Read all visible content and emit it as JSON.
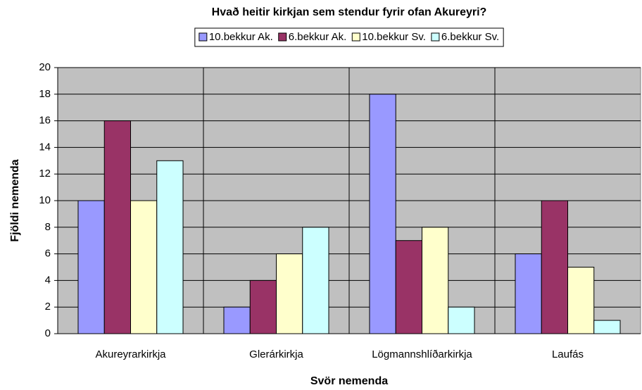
{
  "chart_data": {
    "type": "bar",
    "title": "Hvað heitir kirkjan sem stendur fyrir ofan Akureyri?",
    "x_label": "Svör nemenda",
    "y_label": "Fjöldi nemenda",
    "categories": [
      "Akureyrarkirkja",
      "Glerárkirkja",
      "Lögmannshlíðarkirkja",
      "Laufás"
    ],
    "series": [
      {
        "name": "10.bekkur Ak.",
        "color": "#9999ff",
        "values": [
          10,
          2,
          18,
          6
        ]
      },
      {
        "name": "6.bekkur Ak.",
        "color": "#993366",
        "values": [
          16,
          4,
          7,
          10
        ]
      },
      {
        "name": "10.bekkur Sv.",
        "color": "#ffffcc",
        "values": [
          10,
          6,
          8,
          5
        ]
      },
      {
        "name": "6.bekkur Sv.",
        "color": "#ccffff",
        "values": [
          13,
          8,
          2,
          1
        ]
      }
    ],
    "ylim": [
      0,
      20
    ],
    "yticks": [
      0,
      2,
      4,
      6,
      8,
      10,
      12,
      14,
      16,
      18,
      20
    ],
    "grid": true,
    "legend": "top"
  }
}
